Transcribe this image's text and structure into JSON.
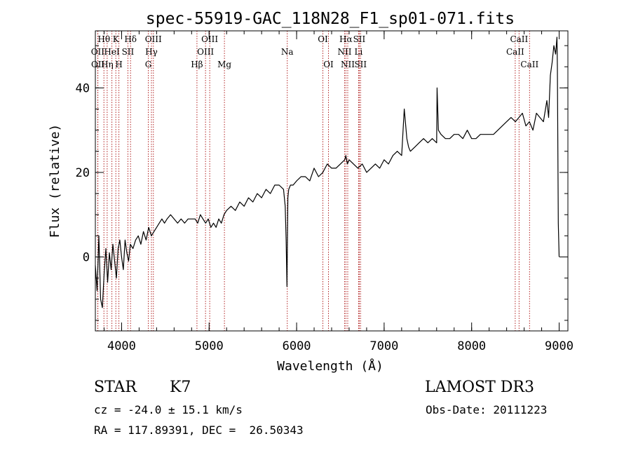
{
  "chart_data": {
    "type": "line",
    "title": "spec-55919-GAC_118N28_F1_sp01-071.fits",
    "xlabel": "Wavelength (Å)",
    "ylabel": "Flux (relative)",
    "xlim": [
      3700,
      9100
    ],
    "ylim": [
      -17.5,
      53.5
    ],
    "x_ticks": [
      4000,
      5000,
      6000,
      7000,
      8000,
      9000
    ],
    "x_tick_labels": [
      "4000",
      "5000",
      "6000",
      "7000",
      "8000",
      "9000"
    ],
    "y_ticks": [
      0,
      20,
      40
    ],
    "y_tick_labels": [
      "0",
      "20",
      "40"
    ],
    "x_minor_step": 200,
    "y_minor_step": 5,
    "spectrum": {
      "x": [
        3700,
        3720,
        3740,
        3760,
        3780,
        3800,
        3820,
        3840,
        3860,
        3880,
        3900,
        3920,
        3940,
        3960,
        3980,
        4000,
        4020,
        4040,
        4060,
        4080,
        4100,
        4130,
        4160,
        4190,
        4220,
        4250,
        4280,
        4310,
        4340,
        4370,
        4400,
        4430,
        4460,
        4490,
        4520,
        4560,
        4600,
        4640,
        4680,
        4720,
        4760,
        4800,
        4840,
        4870,
        4900,
        4930,
        4960,
        4990,
        5020,
        5050,
        5080,
        5110,
        5140,
        5170,
        5200,
        5250,
        5300,
        5350,
        5400,
        5450,
        5500,
        5550,
        5600,
        5650,
        5700,
        5750,
        5800,
        5850,
        5870,
        5880,
        5890,
        5895,
        5900,
        5910,
        5930,
        5960,
        6000,
        6050,
        6100,
        6150,
        6200,
        6250,
        6300,
        6350,
        6400,
        6450,
        6500,
        6550,
        6563,
        6580,
        6600,
        6650,
        6700,
        6750,
        6800,
        6850,
        6900,
        6950,
        7000,
        7050,
        7100,
        7150,
        7200,
        7230,
        7260,
        7280,
        7300,
        7350,
        7400,
        7450,
        7500,
        7550,
        7600,
        7605,
        7620,
        7650,
        7700,
        7750,
        7800,
        7850,
        7900,
        7950,
        8000,
        8050,
        8100,
        8150,
        8200,
        8250,
        8300,
        8350,
        8400,
        8450,
        8500,
        8540,
        8580,
        8620,
        8660,
        8700,
        8740,
        8780,
        8820,
        8860,
        8880,
        8900,
        8920,
        8940,
        8960,
        8975,
        8980,
        8990,
        9000
      ],
      "y": [
        -2,
        -8,
        5,
        -10,
        -12,
        -4,
        2,
        -6,
        1,
        -3,
        3,
        -1,
        -5,
        2,
        4,
        0,
        -3,
        4,
        1,
        -1,
        3,
        2,
        4,
        5,
        3,
        6,
        4,
        7,
        5,
        6,
        7,
        8,
        9,
        8,
        9,
        10,
        9,
        8,
        9,
        8,
        9,
        9,
        9,
        8,
        10,
        9,
        8,
        9,
        7,
        8,
        7,
        9,
        8,
        10,
        11,
        12,
        11,
        13,
        12,
        14,
        13,
        15,
        14,
        16,
        15,
        17,
        17,
        16,
        12,
        4,
        -7,
        5,
        14,
        16,
        17,
        17,
        18,
        19,
        19,
        18,
        21,
        19,
        20,
        22,
        21,
        21,
        22,
        23,
        24,
        22,
        23,
        22,
        21,
        22,
        20,
        21,
        22,
        21,
        23,
        22,
        24,
        25,
        24,
        35,
        28,
        26,
        25,
        26,
        27,
        28,
        27,
        28,
        27,
        40,
        30,
        29,
        28,
        28,
        29,
        29,
        28,
        30,
        28,
        28,
        29,
        29,
        29,
        29,
        30,
        31,
        32,
        33,
        32,
        33,
        34,
        31,
        32,
        30,
        34,
        33,
        32,
        37,
        33,
        43,
        46,
        50,
        48,
        52,
        45,
        8,
        0
      ]
    },
    "lines": [
      {
        "label": "Hθ",
        "x": 3798,
        "row": 0
      },
      {
        "label": "OII",
        "x": 3727,
        "row": 1
      },
      {
        "label": "OII",
        "x": 3729,
        "row": 2
      },
      {
        "label": "Hη",
        "x": 3835,
        "row": 2
      },
      {
        "label": "HeI",
        "x": 3889,
        "row": 1
      },
      {
        "label": "K",
        "x": 3934,
        "row": 0
      },
      {
        "label": "SII",
        "x": 4072,
        "row": 1
      },
      {
        "label": "H",
        "x": 3969,
        "row": 2
      },
      {
        "label": "Hδ",
        "x": 4102,
        "row": 0
      },
      {
        "label": "OIII",
        "x": 4363,
        "row": 0
      },
      {
        "label": "Hγ",
        "x": 4341,
        "row": 1
      },
      {
        "label": "G",
        "x": 4305,
        "row": 2
      },
      {
        "label": "Hβ",
        "x": 4861,
        "row": 2
      },
      {
        "label": "OIII",
        "x": 5007,
        "row": 0
      },
      {
        "label": "OIII",
        "x": 4959,
        "row": 1
      },
      {
        "label": "Mg",
        "x": 5175,
        "row": 2
      },
      {
        "label": "Na",
        "x": 5893,
        "row": 1
      },
      {
        "label": "OI",
        "x": 6300,
        "row": 0
      },
      {
        "label": "OI",
        "x": 6364,
        "row": 2
      },
      {
        "label": "Hα",
        "x": 6563,
        "row": 0
      },
      {
        "label": "NII",
        "x": 6548,
        "row": 1
      },
      {
        "label": "NII",
        "x": 6584,
        "row": 2
      },
      {
        "label": "SII",
        "x": 6716,
        "row": 0
      },
      {
        "label": "Li",
        "x": 6708,
        "row": 1
      },
      {
        "label": "SII",
        "x": 6731,
        "row": 2
      },
      {
        "label": "CaII",
        "x": 8542,
        "row": 0
      },
      {
        "label": "CaII",
        "x": 8498,
        "row": 1
      },
      {
        "label": "CaII",
        "x": 8662,
        "row": 2
      }
    ]
  },
  "info": {
    "object_class": "STAR",
    "subclass": "K7",
    "survey": "LAMOST DR3",
    "redshift": "cz = -24.0 ± 15.1 km/s",
    "obs_date": "Obs-Date: 20111223",
    "coords": "RA = 117.89391, DEC =  26.50343"
  },
  "colors": {
    "spectrum": "#000000",
    "line_marker": "#b22222",
    "axis": "#000000"
  }
}
